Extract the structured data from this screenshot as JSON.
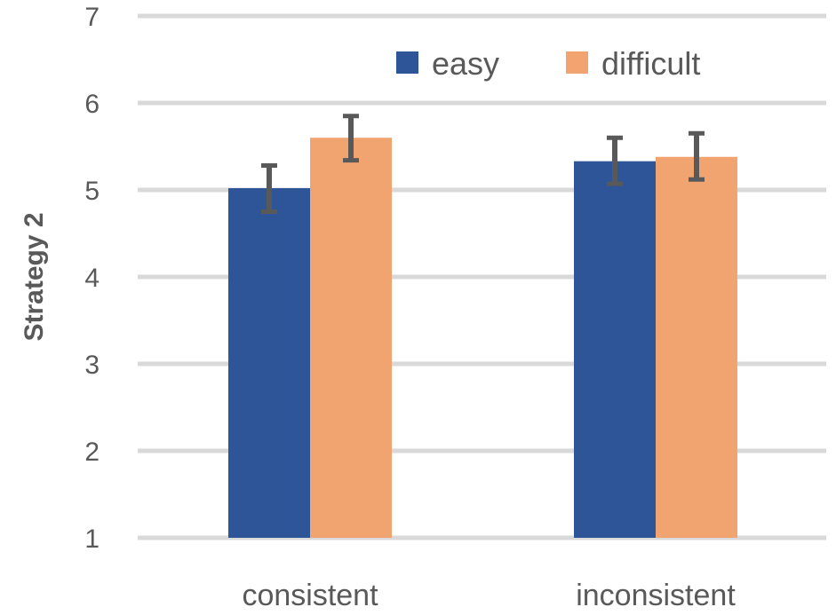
{
  "chart_data": {
    "type": "bar",
    "title": "",
    "xlabel": "",
    "ylabel": "Strategy 2",
    "categories": [
      "consistent",
      "inconsistent"
    ],
    "series": [
      {
        "name": "easy",
        "color": "#2E5597",
        "values": [
          5.02,
          5.33
        ],
        "err_low": [
          4.75,
          5.07
        ],
        "err_high": [
          5.28,
          5.6
        ]
      },
      {
        "name": "difficult",
        "color": "#F2A470",
        "values": [
          5.6,
          5.38
        ],
        "err_low": [
          5.34,
          5.12
        ],
        "err_high": [
          5.85,
          5.65
        ]
      }
    ],
    "ylim": [
      1,
      7
    ],
    "yticks": [
      1,
      2,
      3,
      4,
      5,
      6,
      7
    ],
    "grid": true,
    "gridColor": "#D9D9D9",
    "errorBarColor": "#595959",
    "legend": "top-right"
  }
}
